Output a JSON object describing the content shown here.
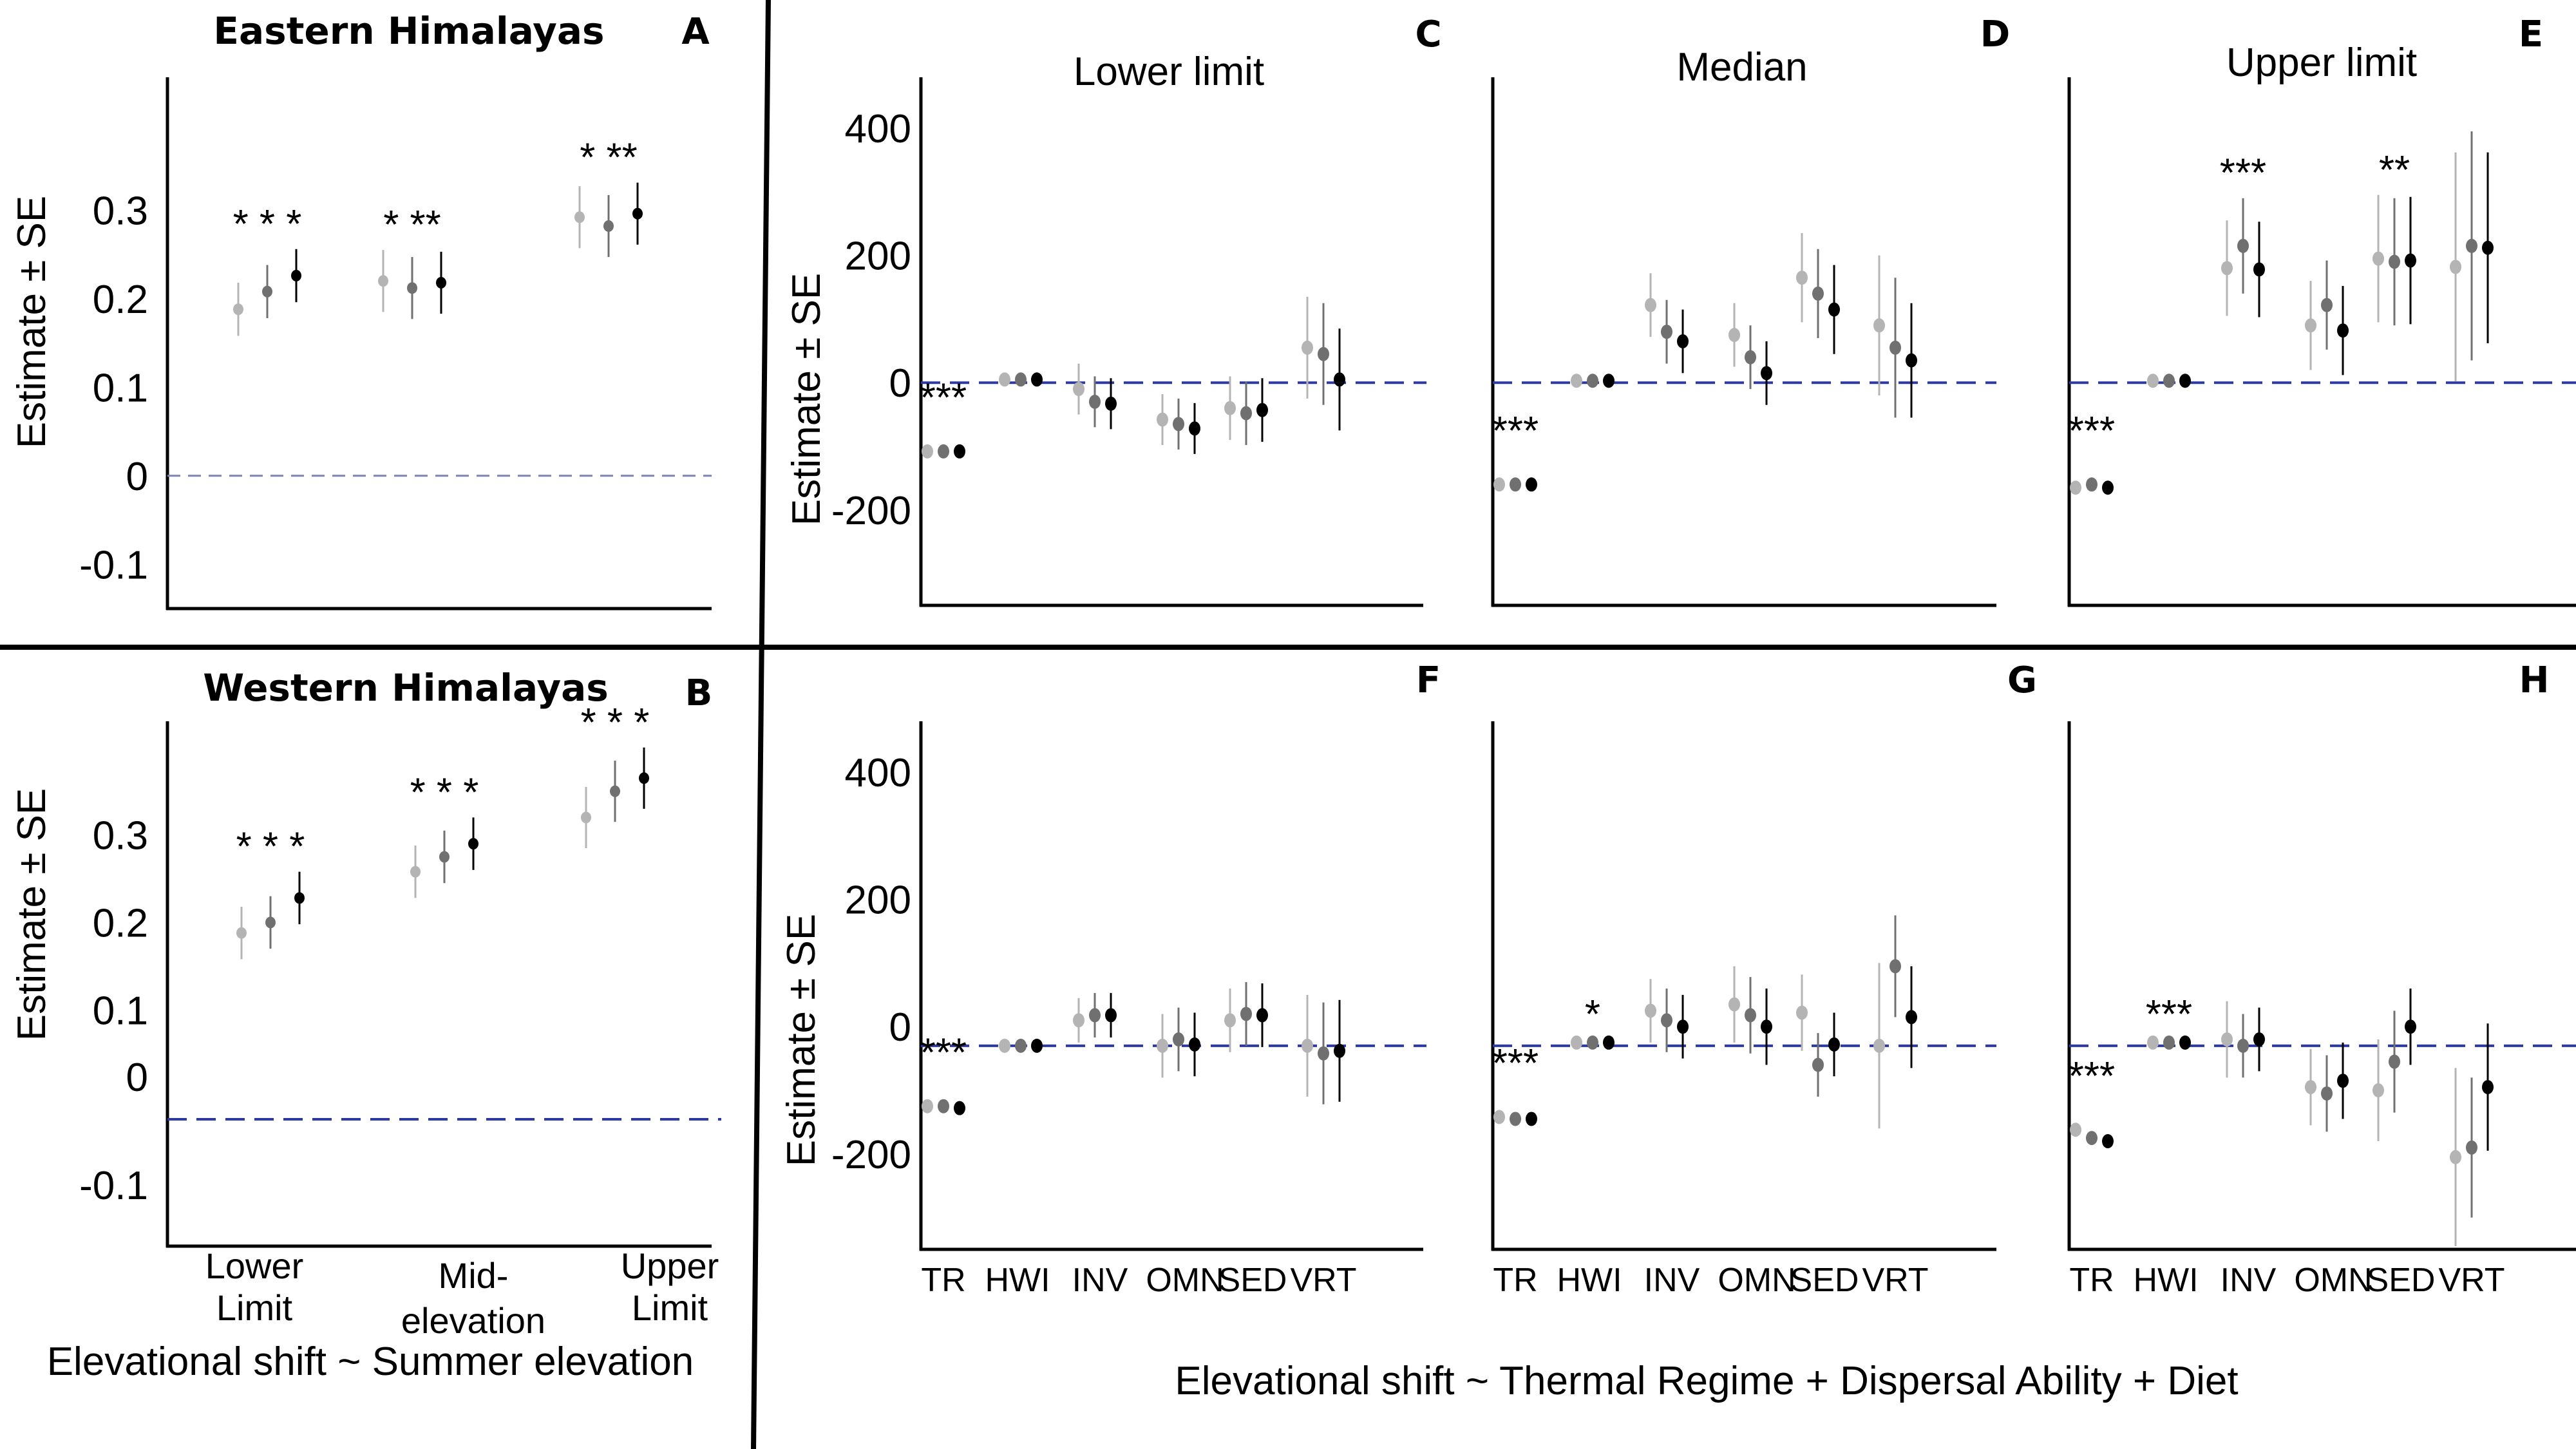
{
  "chart_data": [
    {
      "id": "A",
      "type": "scatter",
      "letter": "A",
      "title": "Eastern Himalayas",
      "ylabel": "Estimate ± SE",
      "xlabel": "",
      "ylim": [
        -0.15,
        0.45
      ],
      "yticks": [
        0.3,
        0.2,
        0.1,
        0,
        -0.1
      ],
      "yticklabels": [
        "0.3",
        "0.2",
        "0.1",
        "0",
        "-0.1"
      ],
      "categories": [
        "Lower Limit",
        "Mid-elevation",
        "Upper Limit"
      ],
      "show_category_labels": false,
      "sig": [
        "* * *",
        "* **",
        "* **"
      ],
      "shades": [
        "#b4b4b4",
        "#707070",
        "#000000"
      ],
      "points": [
        [
          {
            "y": 0.188,
            "se": 0.03
          },
          {
            "y": 0.208,
            "se": 0.03
          },
          {
            "y": 0.226,
            "se": 0.03
          }
        ],
        [
          {
            "y": 0.22,
            "se": 0.035
          },
          {
            "y": 0.212,
            "se": 0.035
          },
          {
            "y": 0.218,
            "se": 0.035
          }
        ],
        [
          {
            "y": 0.292,
            "se": 0.035
          },
          {
            "y": 0.282,
            "se": 0.035
          },
          {
            "y": 0.296,
            "se": 0.035
          }
        ]
      ]
    },
    {
      "id": "B",
      "type": "scatter",
      "letter": "B",
      "title": "Western Himalayas",
      "ylabel": "Estimate ± SE",
      "xlabel": "Elevational shift ~ Summer elevation",
      "ylim": [
        -0.17,
        0.43
      ],
      "yticks": [
        0.3,
        0.2,
        0.1,
        0,
        -0.1
      ],
      "yticklabels": [
        "0.3",
        "0.2",
        "0.1",
        "0",
        "-0.1"
      ],
      "zero_line_value": -0.025,
      "categories": [
        "Lower Limit",
        "Mid-elevation",
        "Upper Limit"
      ],
      "category_label_lines": [
        [
          "Lower",
          "Limit"
        ],
        [
          "Mid-",
          "elevation"
        ],
        [
          "Upper",
          "Limit"
        ]
      ],
      "show_category_labels": true,
      "sig": [
        "* * *",
        "* * *",
        "* * *"
      ],
      "shades": [
        "#b4b4b4",
        "#707070",
        "#000000"
      ],
      "points": [
        [
          {
            "y": 0.188,
            "se": 0.03
          },
          {
            "y": 0.2,
            "se": 0.03
          },
          {
            "y": 0.228,
            "se": 0.03
          }
        ],
        [
          {
            "y": 0.258,
            "se": 0.03
          },
          {
            "y": 0.275,
            "se": 0.03
          },
          {
            "y": 0.29,
            "se": 0.03
          }
        ],
        [
          {
            "y": 0.32,
            "se": 0.035
          },
          {
            "y": 0.35,
            "se": 0.035
          },
          {
            "y": 0.365,
            "se": 0.035
          }
        ]
      ]
    },
    {
      "id": "C",
      "type": "scatter",
      "letter": "C",
      "title": "Lower limit",
      "ylabel": "Estimate ± SE",
      "ylim": [
        -350,
        480
      ],
      "yticks": [
        400,
        200,
        0,
        -200
      ],
      "yticklabels": [
        "400",
        "200",
        "0",
        "-200"
      ],
      "show_yticks": true,
      "show_category_labels": false,
      "categories": [
        "TR",
        "HWI",
        "INV",
        "OMN",
        "SED",
        "VRT"
      ],
      "sig": [
        "***",
        "",
        "",
        "",
        "",
        ""
      ],
      "shades": [
        "#b4b4b4",
        "#707070",
        "#000000"
      ],
      "points": [
        [
          {
            "y": -108,
            "se": 5
          },
          {
            "y": -108,
            "se": 5
          },
          {
            "y": -108,
            "se": 5
          }
        ],
        [
          {
            "y": 5,
            "se": 6
          },
          {
            "y": 5,
            "se": 6
          },
          {
            "y": 5,
            "se": 6
          }
        ],
        [
          {
            "y": -10,
            "se": 40
          },
          {
            "y": -30,
            "se": 40
          },
          {
            "y": -33,
            "se": 40
          }
        ],
        [
          {
            "y": -58,
            "se": 40
          },
          {
            "y": -65,
            "se": 40
          },
          {
            "y": -72,
            "se": 40
          }
        ],
        [
          {
            "y": -40,
            "se": 50
          },
          {
            "y": -48,
            "se": 50
          },
          {
            "y": -43,
            "se": 50
          }
        ],
        [
          {
            "y": 55,
            "se": 80
          },
          {
            "y": 45,
            "se": 80
          },
          {
            "y": 5,
            "se": 80
          }
        ]
      ]
    },
    {
      "id": "D",
      "type": "scatter",
      "letter": "D",
      "title": "Median",
      "ylim": [
        -350,
        480
      ],
      "show_yticks": false,
      "show_category_labels": false,
      "categories": [
        "TR",
        "HWI",
        "INV",
        "OMN",
        "SED",
        "VRT"
      ],
      "sig": [
        "***",
        "",
        "",
        "",
        "",
        ""
      ],
      "shades": [
        "#b4b4b4",
        "#707070",
        "#000000"
      ],
      "points": [
        [
          {
            "y": -160,
            "se": 6
          },
          {
            "y": -160,
            "se": 6
          },
          {
            "y": -160,
            "se": 6
          }
        ],
        [
          {
            "y": 3,
            "se": 6
          },
          {
            "y": 3,
            "se": 6
          },
          {
            "y": 3,
            "se": 6
          }
        ],
        [
          {
            "y": 122,
            "se": 50
          },
          {
            "y": 80,
            "se": 50
          },
          {
            "y": 65,
            "se": 50
          }
        ],
        [
          {
            "y": 75,
            "se": 50
          },
          {
            "y": 40,
            "se": 50
          },
          {
            "y": 15,
            "se": 50
          }
        ],
        [
          {
            "y": 165,
            "se": 70
          },
          {
            "y": 140,
            "se": 70
          },
          {
            "y": 115,
            "se": 70
          }
        ],
        [
          {
            "y": 90,
            "se": 110
          },
          {
            "y": 55,
            "se": 110
          },
          {
            "y": 35,
            "se": 90
          }
        ]
      ]
    },
    {
      "id": "E",
      "type": "scatter",
      "letter": "E",
      "title": "Upper limit",
      "ylim": [
        -350,
        480
      ],
      "show_yticks": false,
      "show_category_labels": false,
      "categories": [
        "TR",
        "HWI",
        "INV",
        "OMN",
        "SED",
        "VRT"
      ],
      "sig": [
        "***",
        "",
        "***",
        "",
        "**",
        ""
      ],
      "shades": [
        "#b4b4b4",
        "#707070",
        "#000000"
      ],
      "points": [
        [
          {
            "y": -165,
            "se": 6
          },
          {
            "y": -160,
            "se": 6
          },
          {
            "y": -165,
            "se": 6
          }
        ],
        [
          {
            "y": 3,
            "se": 6
          },
          {
            "y": 3,
            "se": 6
          },
          {
            "y": 3,
            "se": 6
          }
        ],
        [
          {
            "y": 180,
            "se": 75
          },
          {
            "y": 215,
            "se": 75
          },
          {
            "y": 178,
            "se": 75
          }
        ],
        [
          {
            "y": 90,
            "se": 70
          },
          {
            "y": 122,
            "se": 70
          },
          {
            "y": 82,
            "se": 70
          }
        ],
        [
          {
            "y": 195,
            "se": 100
          },
          {
            "y": 190,
            "se": 100
          },
          {
            "y": 192,
            "se": 100
          }
        ],
        [
          {
            "y": 182,
            "se": 180
          },
          {
            "y": 215,
            "se": 180
          },
          {
            "y": 212,
            "se": 150
          }
        ]
      ]
    },
    {
      "id": "F",
      "type": "scatter",
      "letter": "F",
      "title": "",
      "ylabel": "Estimate ± SE",
      "ylim": [
        -350,
        480
      ],
      "yticks": [
        400,
        200,
        0,
        -200
      ],
      "yticklabels": [
        "400",
        "200",
        "0",
        "-200"
      ],
      "zero_line_value": -30,
      "show_yticks": true,
      "show_category_labels": true,
      "categories": [
        "TR",
        "HWI",
        "INV",
        "OMN",
        "SED",
        "VRT"
      ],
      "sig": [
        "***",
        "",
        "",
        "",
        "",
        ""
      ],
      "shades": [
        "#b4b4b4",
        "#707070",
        "#000000"
      ],
      "points": [
        [
          {
            "y": -125,
            "se": 5
          },
          {
            "y": -125,
            "se": 5
          },
          {
            "y": -128,
            "se": 5
          }
        ],
        [
          {
            "y": -30,
            "se": 5
          },
          {
            "y": -30,
            "se": 5
          },
          {
            "y": -30,
            "se": 5
          }
        ],
        [
          {
            "y": 10,
            "se": 35
          },
          {
            "y": 18,
            "se": 35
          },
          {
            "y": 18,
            "se": 35
          }
        ],
        [
          {
            "y": -30,
            "se": 50
          },
          {
            "y": -20,
            "se": 50
          },
          {
            "y": -28,
            "se": 50
          }
        ],
        [
          {
            "y": 10,
            "se": 50
          },
          {
            "y": 20,
            "se": 50
          },
          {
            "y": 18,
            "se": 50
          }
        ],
        [
          {
            "y": -30,
            "se": 80
          },
          {
            "y": -42,
            "se": 80
          },
          {
            "y": -38,
            "se": 80
          }
        ]
      ]
    },
    {
      "id": "G",
      "type": "scatter",
      "letter": "G",
      "title": "",
      "ylim": [
        -350,
        480
      ],
      "zero_line_value": -30,
      "show_yticks": false,
      "show_category_labels": true,
      "categories": [
        "TR",
        "HWI",
        "INV",
        "OMN",
        "SED",
        "VRT"
      ],
      "sig": [
        "***",
        "*",
        "",
        "",
        "",
        ""
      ],
      "shades": [
        "#b4b4b4",
        "#707070",
        "#000000"
      ],
      "points": [
        [
          {
            "y": -142,
            "se": 5
          },
          {
            "y": -145,
            "se": 5
          },
          {
            "y": -145,
            "se": 5
          }
        ],
        [
          {
            "y": -25,
            "se": 5
          },
          {
            "y": -25,
            "se": 5
          },
          {
            "y": -25,
            "se": 5
          }
        ],
        [
          {
            "y": 25,
            "se": 50
          },
          {
            "y": 10,
            "se": 50
          },
          {
            "y": 0,
            "se": 50
          }
        ],
        [
          {
            "y": 35,
            "se": 60
          },
          {
            "y": 18,
            "se": 60
          },
          {
            "y": 0,
            "se": 60
          }
        ],
        [
          {
            "y": 22,
            "se": 60
          },
          {
            "y": -60,
            "se": 50
          },
          {
            "y": -28,
            "se": 50
          }
        ],
        [
          {
            "y": -30,
            "se": 130
          },
          {
            "y": 95,
            "se": 80
          },
          {
            "y": 15,
            "se": 80
          }
        ]
      ]
    },
    {
      "id": "H",
      "type": "scatter",
      "letter": "H",
      "title": "",
      "ylim": [
        -350,
        480
      ],
      "zero_line_value": -30,
      "show_yticks": false,
      "show_category_labels": true,
      "categories": [
        "TR",
        "HWI",
        "INV",
        "OMN",
        "SED",
        "VRT"
      ],
      "sig": [
        "***",
        "***",
        "",
        "",
        "",
        ""
      ],
      "shades": [
        "#b4b4b4",
        "#707070",
        "#000000"
      ],
      "points": [
        [
          {
            "y": -162,
            "se": 5
          },
          {
            "y": -175,
            "se": 5
          },
          {
            "y": -180,
            "se": 5
          }
        ],
        [
          {
            "y": -25,
            "se": 5
          },
          {
            "y": -25,
            "se": 5
          },
          {
            "y": -25,
            "se": 5
          }
        ],
        [
          {
            "y": -20,
            "se": 60
          },
          {
            "y": -30,
            "se": 50
          },
          {
            "y": -20,
            "se": 50
          }
        ],
        [
          {
            "y": -95,
            "se": 60
          },
          {
            "y": -105,
            "se": 60
          },
          {
            "y": -85,
            "se": 60
          }
        ],
        [
          {
            "y": -100,
            "se": 80
          },
          {
            "y": -55,
            "se": 80
          },
          {
            "y": 0,
            "se": 60
          }
        ],
        [
          {
            "y": -205,
            "se": 140
          },
          {
            "y": -190,
            "se": 110
          },
          {
            "y": -95,
            "se": 100
          }
        ]
      ]
    }
  ],
  "footer": {
    "right_xlabel": "Elevational shift ~ Thermal Regime + Dispersal Ability + Diet"
  }
}
